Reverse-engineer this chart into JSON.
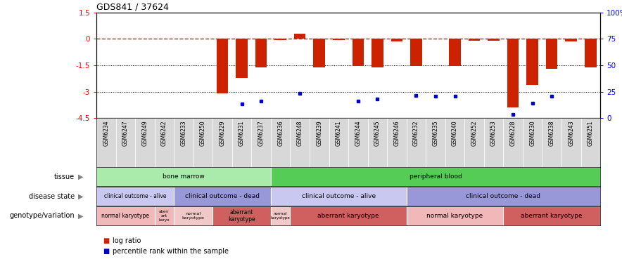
{
  "title": "GDS841 / 37624",
  "samples": [
    "GSM6234",
    "GSM6247",
    "GSM6249",
    "GSM6242",
    "GSM6233",
    "GSM6250",
    "GSM6229",
    "GSM6231",
    "GSM6237",
    "GSM6236",
    "GSM6248",
    "GSM6239",
    "GSM6241",
    "GSM6244",
    "GSM6245",
    "GSM6246",
    "GSM6232",
    "GSM6235",
    "GSM6240",
    "GSM6252",
    "GSM6253",
    "GSM6228",
    "GSM6230",
    "GSM6238",
    "GSM6243",
    "GSM6251"
  ],
  "log_ratio": [
    0.0,
    0.0,
    0.0,
    0.0,
    0.0,
    0.0,
    -3.1,
    -2.2,
    -1.6,
    -0.08,
    0.3,
    -1.6,
    -0.05,
    -1.55,
    -1.6,
    -0.15,
    -1.55,
    0.0,
    -1.55,
    -0.1,
    -0.1,
    -3.9,
    -2.6,
    -1.7,
    -0.15,
    -1.6
  ],
  "percentile": [
    null,
    null,
    null,
    null,
    null,
    null,
    null,
    -3.7,
    -3.55,
    null,
    -3.1,
    null,
    null,
    -3.55,
    -3.4,
    null,
    -3.2,
    -3.25,
    -3.25,
    null,
    null,
    -4.3,
    -3.65,
    -3.25,
    null,
    null
  ],
  "ylim": [
    -4.5,
    1.5
  ],
  "yticks_left": [
    1.5,
    0.0,
    -1.5,
    -3.0,
    -4.5
  ],
  "ytick_right_vals": [
    1.5,
    0.0,
    -1.5,
    -3.0,
    -4.5
  ],
  "ytick_right_labels": [
    "100%",
    "75",
    "50",
    "25",
    "0"
  ],
  "hline_y": 0.0,
  "dotted_lines": [
    -1.5,
    -3.0
  ],
  "bar_color": "#cc2200",
  "dot_color": "#0000cc",
  "bar_width": 0.6,
  "tissues": [
    {
      "label": "bone marrow",
      "start": 0,
      "end": 9,
      "color": "#aaeaaa"
    },
    {
      "label": "peripheral blood",
      "start": 9,
      "end": 26,
      "color": "#55cc55"
    }
  ],
  "disease_states": [
    {
      "label": "clinical outcome - alive",
      "start": 0,
      "end": 4,
      "color": "#c8c8f0"
    },
    {
      "label": "clinical outcome - dead",
      "start": 4,
      "end": 9,
      "color": "#9898d8"
    },
    {
      "label": "clinical outcome - alive",
      "start": 9,
      "end": 16,
      "color": "#c8c8f0"
    },
    {
      "label": "clinical outcome - dead",
      "start": 16,
      "end": 26,
      "color": "#9898d8"
    }
  ],
  "genotypes": [
    {
      "label": "normal karyotype",
      "start": 0,
      "end": 3,
      "color": "#f0b8b8"
    },
    {
      "label": "aberr\nant\nkaryo",
      "start": 3,
      "end": 4,
      "color": "#f0b8b8"
    },
    {
      "label": "normal\nkaryotype",
      "start": 4,
      "end": 6,
      "color": "#f0c8c8"
    },
    {
      "label": "aberrant\nkaryotype",
      "start": 6,
      "end": 9,
      "color": "#d06060"
    },
    {
      "label": "normal\nkaryotype",
      "start": 9,
      "end": 10,
      "color": "#f0c8c8"
    },
    {
      "label": "aberrant karyotype",
      "start": 10,
      "end": 16,
      "color": "#d06060"
    },
    {
      "label": "normal karyotype",
      "start": 16,
      "end": 21,
      "color": "#f0b8b8"
    },
    {
      "label": "aberrant karyotype",
      "start": 21,
      "end": 26,
      "color": "#d06060"
    }
  ],
  "row_labels": [
    "tissue",
    "disease state",
    "genotype/variation"
  ],
  "legend_log_ratio_label": "log ratio",
  "legend_percentile_label": "percentile rank within the sample",
  "bg_color": "#ffffff",
  "xtick_bg": "#d8d8d8"
}
